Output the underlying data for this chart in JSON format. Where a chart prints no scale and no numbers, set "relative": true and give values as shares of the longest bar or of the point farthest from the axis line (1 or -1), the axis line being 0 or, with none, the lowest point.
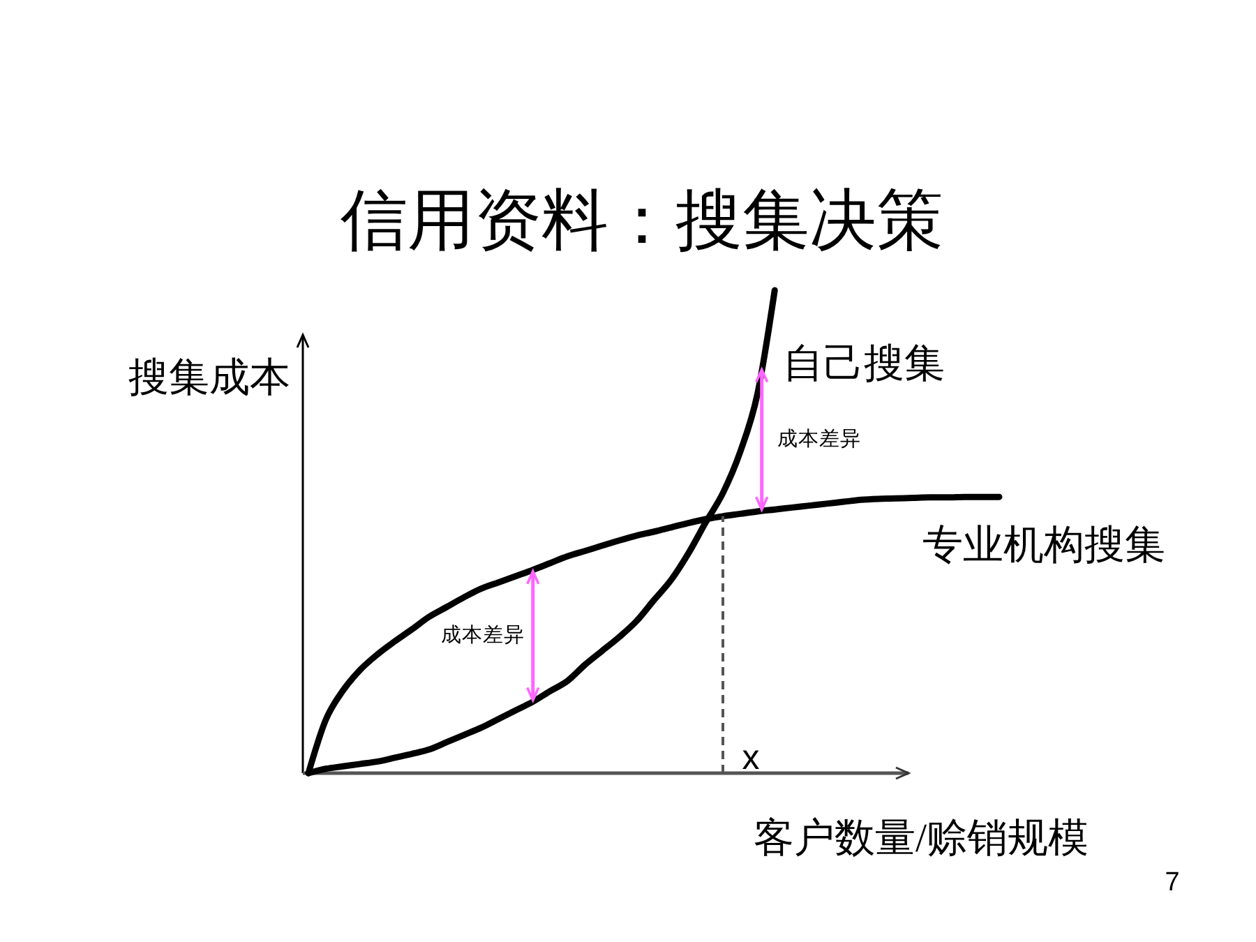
{
  "chart_data": {
    "type": "line",
    "title": "信用资料：搜集决策",
    "xlabel": "客户数量/赊销规模",
    "ylabel": "搜集成本",
    "relative": true,
    "categories": [
      null,
      null,
      null,
      null,
      null,
      null,
      null,
      null,
      null,
      null,
      null,
      null,
      null,
      null,
      null,
      null,
      null,
      null,
      null,
      null,
      null,
      null,
      null,
      null,
      null,
      null,
      null,
      null,
      null,
      null,
      null,
      null,
      null,
      null,
      null,
      null,
      null,
      null,
      null,
      null,
      null
    ],
    "series": [
      {
        "name": "自己搜集",
        "color": "#000000",
        "values": [
          0,
          0.009,
          0.014,
          0.019,
          0.024,
          0.032,
          0.04,
          0.049,
          0.064,
          0.079,
          0.094,
          0.112,
          0.13,
          0.148,
          0.17,
          0.191,
          0.224,
          0.253,
          0.282,
          0.315,
          0.358,
          0.4,
          0.455,
          0.519,
          0.58,
          0.665,
          0.785,
          1,
          null,
          null,
          null,
          null,
          null,
          null,
          null,
          null,
          null,
          null,
          null,
          null,
          null
        ]
      },
      {
        "name": "专业机构搜集",
        "color": "#000000",
        "values": [
          0,
          0.11,
          0.171,
          0.214,
          0.246,
          0.273,
          0.298,
          0.324,
          0.344,
          0.364,
          0.382,
          0.395,
          0.408,
          0.421,
          0.435,
          0.449,
          0.46,
          0.471,
          0.482,
          0.492,
          0.5,
          0.509,
          0.518,
          0.526,
          0.532,
          0.537,
          0.542,
          0.546,
          0.55,
          0.554,
          0.558,
          0.562,
          0.566,
          0.568,
          0.569,
          0.57,
          0.571,
          0.571,
          0.572,
          0.572,
          0.572
        ]
      }
    ],
    "annotations": [
      "成本差异",
      "成本差异",
      "x",
      "7"
    ]
  }
}
